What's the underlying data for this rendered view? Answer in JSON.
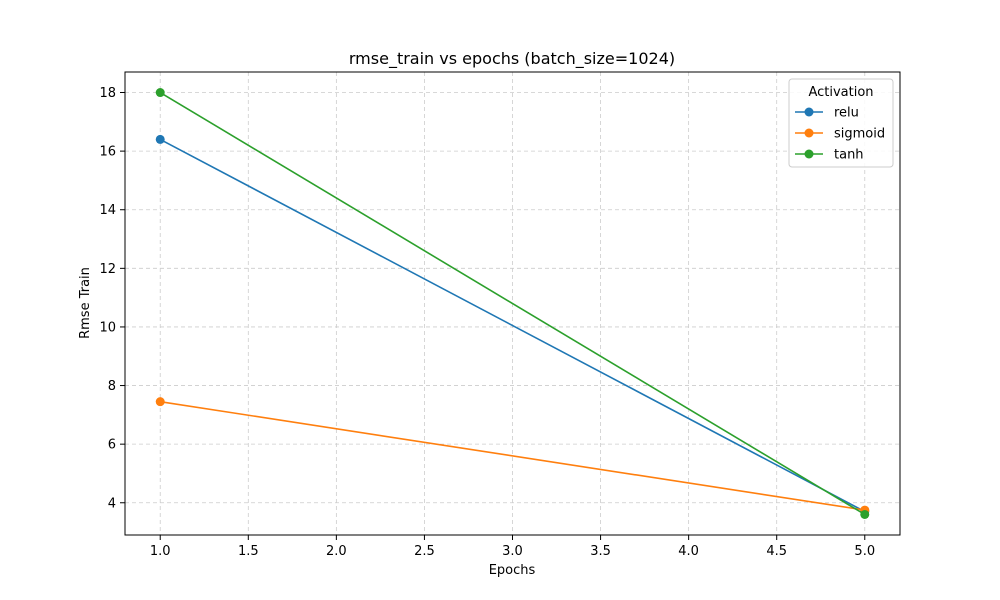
{
  "chart_data": {
    "type": "line",
    "title": "rmse_train vs epochs (batch_size=1024)",
    "xlabel": "Epochs",
    "ylabel": "Rmse Train",
    "xlim": [
      0.8,
      5.2
    ],
    "ylim": [
      2.9,
      18.7
    ],
    "x_ticks": [
      1.0,
      1.5,
      2.0,
      2.5,
      3.0,
      3.5,
      4.0,
      4.5,
      5.0
    ],
    "x_tick_labels": [
      "1.0",
      "1.5",
      "2.0",
      "2.5",
      "3.0",
      "3.5",
      "4.0",
      "4.5",
      "5.0"
    ],
    "y_ticks": [
      4,
      6,
      8,
      10,
      12,
      14,
      16,
      18
    ],
    "y_tick_labels": [
      "4",
      "6",
      "8",
      "10",
      "12",
      "14",
      "16",
      "18"
    ],
    "grid": true,
    "legend": {
      "title": "Activation",
      "placement": "top-right"
    },
    "series": [
      {
        "name": "relu",
        "color": "#1f77b4",
        "x": [
          1,
          5
        ],
        "y": [
          16.4,
          3.7
        ]
      },
      {
        "name": "sigmoid",
        "color": "#ff7f0e",
        "x": [
          1,
          5
        ],
        "y": [
          7.45,
          3.75
        ]
      },
      {
        "name": "tanh",
        "color": "#2ca02c",
        "x": [
          1,
          5
        ],
        "y": [
          18.0,
          3.6
        ]
      }
    ]
  }
}
